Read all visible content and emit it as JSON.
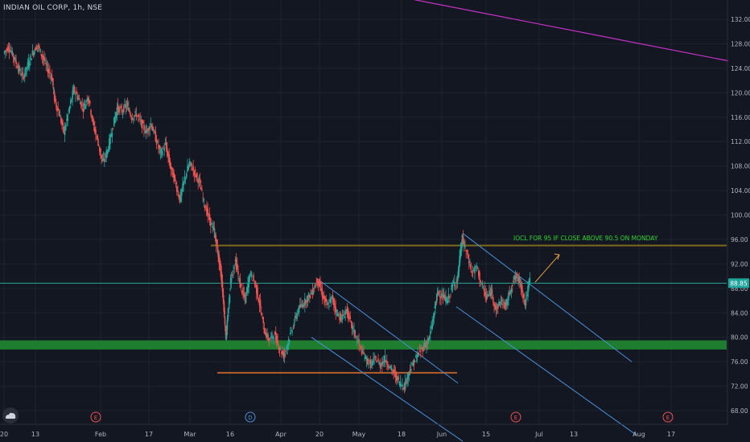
{
  "header": {
    "title": "INDIAN OIL CORP, 1h, NSE"
  },
  "price_badge": {
    "value": "88.85",
    "bg": "#1fa69a"
  },
  "annotation": {
    "text": "IOCL FOR 95 IF CLOSE ABOVE 90.5 ON MONDAY",
    "color": "#2dd62d"
  },
  "events": [
    "E",
    "D",
    "E",
    "E"
  ],
  "icons": {
    "logo": "tradingview-logo-icon"
  },
  "colors": {
    "background": "#131722",
    "grid": "#1f2330",
    "axis_text": "#b2b5be",
    "up": "#26a69a",
    "down": "#ef5350",
    "resistance": "#7a6a1a",
    "support_zone": "#1e7d2e",
    "support_line": "#b25f2a",
    "channel": "#4a90d9",
    "trendline": "#c832c8",
    "annotation_arrow": "#e8a33a"
  },
  "chart_data": {
    "type": "candlestick",
    "title": "INDIAN OIL CORP, 1h, NSE",
    "x_tick_labels": [
      "20",
      "13",
      "Feb",
      "17",
      "Mar",
      "16",
      "Apr",
      "20",
      "May",
      "18",
      "Jun",
      "15",
      "Jul",
      "13",
      "Aug",
      "17"
    ],
    "y_tick_labels": [
      "68.00",
      "72.00",
      "76.00",
      "80.00",
      "84.00",
      "88.00",
      "92.00",
      "96.00",
      "100.00",
      "104.00",
      "108.00",
      "112.00",
      "116.00",
      "120.00",
      "124.00",
      "128.00",
      "132.00"
    ],
    "ylim": [
      66,
      135
    ],
    "last_price": 88.85,
    "price_path": [
      {
        "x": 0.0,
        "y": 126.5
      },
      {
        "x": 0.2,
        "y": 127.5
      },
      {
        "x": 0.4,
        "y": 126.0
      },
      {
        "x": 0.6,
        "y": 124.0
      },
      {
        "x": 0.8,
        "y": 122.5
      },
      {
        "x": 1.0,
        "y": 124.5
      },
      {
        "x": 1.2,
        "y": 126.5
      },
      {
        "x": 1.4,
        "y": 127.8
      },
      {
        "x": 1.6,
        "y": 126.0
      },
      {
        "x": 1.8,
        "y": 124.0
      },
      {
        "x": 2.0,
        "y": 122.5
      },
      {
        "x": 2.1,
        "y": 119.0
      },
      {
        "x": 2.3,
        "y": 116.5
      },
      {
        "x": 2.5,
        "y": 113.5
      },
      {
        "x": 2.7,
        "y": 117.0
      },
      {
        "x": 2.9,
        "y": 120.5
      },
      {
        "x": 3.1,
        "y": 119.0
      },
      {
        "x": 3.3,
        "y": 117.5
      },
      {
        "x": 3.5,
        "y": 119.5
      },
      {
        "x": 3.7,
        "y": 115.0
      },
      {
        "x": 3.9,
        "y": 112.0
      },
      {
        "x": 4.1,
        "y": 108.5
      },
      {
        "x": 4.3,
        "y": 110.5
      },
      {
        "x": 4.5,
        "y": 114.0
      },
      {
        "x": 4.7,
        "y": 117.5
      },
      {
        "x": 4.9,
        "y": 117.0
      },
      {
        "x": 5.1,
        "y": 118.0
      },
      {
        "x": 5.3,
        "y": 116.0
      },
      {
        "x": 5.5,
        "y": 116.5
      },
      {
        "x": 5.7,
        "y": 115.0
      },
      {
        "x": 5.9,
        "y": 113.5
      },
      {
        "x": 6.1,
        "y": 115.0
      },
      {
        "x": 6.3,
        "y": 112.5
      },
      {
        "x": 6.5,
        "y": 110.0
      },
      {
        "x": 6.7,
        "y": 111.5
      },
      {
        "x": 6.9,
        "y": 108.0
      },
      {
        "x": 7.1,
        "y": 105.5
      },
      {
        "x": 7.3,
        "y": 102.5
      },
      {
        "x": 7.5,
        "y": 106.0
      },
      {
        "x": 7.7,
        "y": 108.5
      },
      {
        "x": 7.9,
        "y": 107.0
      },
      {
        "x": 8.1,
        "y": 105.5
      },
      {
        "x": 8.3,
        "y": 102.0
      },
      {
        "x": 8.5,
        "y": 99.5
      },
      {
        "x": 8.7,
        "y": 97.5
      },
      {
        "x": 8.8,
        "y": 95.5
      },
      {
        "x": 8.9,
        "y": 93.0
      },
      {
        "x": 9.0,
        "y": 90.5
      },
      {
        "x": 9.1,
        "y": 86.0
      },
      {
        "x": 9.2,
        "y": 80.0
      },
      {
        "x": 9.3,
        "y": 84.0
      },
      {
        "x": 9.4,
        "y": 89.5
      },
      {
        "x": 9.6,
        "y": 92.5
      },
      {
        "x": 9.8,
        "y": 88.5
      },
      {
        "x": 10.0,
        "y": 86.0
      },
      {
        "x": 10.2,
        "y": 90.5
      },
      {
        "x": 10.4,
        "y": 89.0
      },
      {
        "x": 10.6,
        "y": 85.5
      },
      {
        "x": 10.8,
        "y": 81.0
      },
      {
        "x": 11.0,
        "y": 79.5
      },
      {
        "x": 11.2,
        "y": 80.5
      },
      {
        "x": 11.4,
        "y": 78.5
      },
      {
        "x": 11.6,
        "y": 77.0
      },
      {
        "x": 11.8,
        "y": 79.5
      },
      {
        "x": 12.0,
        "y": 82.0
      },
      {
        "x": 12.2,
        "y": 84.5
      },
      {
        "x": 12.4,
        "y": 85.5
      },
      {
        "x": 12.6,
        "y": 86.5
      },
      {
        "x": 12.8,
        "y": 87.5
      },
      {
        "x": 13.0,
        "y": 89.5
      },
      {
        "x": 13.2,
        "y": 87.0
      },
      {
        "x": 13.4,
        "y": 85.0
      },
      {
        "x": 13.6,
        "y": 86.5
      },
      {
        "x": 13.8,
        "y": 84.0
      },
      {
        "x": 14.0,
        "y": 83.0
      },
      {
        "x": 14.2,
        "y": 84.5
      },
      {
        "x": 14.4,
        "y": 82.0
      },
      {
        "x": 14.6,
        "y": 80.0
      },
      {
        "x": 14.8,
        "y": 78.0
      },
      {
        "x": 15.0,
        "y": 76.5
      },
      {
        "x": 15.2,
        "y": 75.5
      },
      {
        "x": 15.4,
        "y": 76.5
      },
      {
        "x": 15.6,
        "y": 75.5
      },
      {
        "x": 15.8,
        "y": 76.5
      },
      {
        "x": 16.0,
        "y": 75.0
      },
      {
        "x": 16.2,
        "y": 74.0
      },
      {
        "x": 16.4,
        "y": 72.5
      },
      {
        "x": 16.6,
        "y": 72.0
      },
      {
        "x": 16.8,
        "y": 74.5
      },
      {
        "x": 17.0,
        "y": 76.0
      },
      {
        "x": 17.2,
        "y": 77.5
      },
      {
        "x": 17.4,
        "y": 78.5
      },
      {
        "x": 17.6,
        "y": 79.5
      },
      {
        "x": 17.8,
        "y": 83.0
      },
      {
        "x": 17.9,
        "y": 86.0
      },
      {
        "x": 18.0,
        "y": 87.5
      },
      {
        "x": 18.2,
        "y": 86.5
      },
      {
        "x": 18.4,
        "y": 86.0
      },
      {
        "x": 18.6,
        "y": 88.5
      },
      {
        "x": 18.8,
        "y": 89.5
      },
      {
        "x": 18.9,
        "y": 93.5
      },
      {
        "x": 19.0,
        "y": 96.0
      },
      {
        "x": 19.2,
        "y": 93.5
      },
      {
        "x": 19.4,
        "y": 90.5
      },
      {
        "x": 19.6,
        "y": 91.5
      },
      {
        "x": 19.8,
        "y": 88.5
      },
      {
        "x": 20.0,
        "y": 86.5
      },
      {
        "x": 20.2,
        "y": 87.5
      },
      {
        "x": 20.4,
        "y": 84.5
      },
      {
        "x": 20.6,
        "y": 86.0
      },
      {
        "x": 20.8,
        "y": 85.0
      },
      {
        "x": 21.0,
        "y": 88.0
      },
      {
        "x": 21.2,
        "y": 90.0
      },
      {
        "x": 21.4,
        "y": 89.0
      },
      {
        "x": 21.6,
        "y": 85.5
      },
      {
        "x": 21.8,
        "y": 89.5
      }
    ],
    "levels": {
      "resistance": 95.0,
      "support_zone": [
        78.0,
        79.5
      ],
      "support_line": 74.2
    },
    "channels": [
      {
        "a": {
          "x": 13.0,
          "y": 89.5
        },
        "b": {
          "x": 18.8,
          "y": 72.5
        },
        "offset": -9.5
      },
      {
        "a": {
          "x": 19.0,
          "y": 97.0
        },
        "b": {
          "x": 26.0,
          "y": 76.0
        },
        "offset": -12.0
      }
    ],
    "trendline": {
      "a": {
        "x": 17.0,
        "y": 135.2
      },
      "b": {
        "x": 30.0,
        "y": 125.2
      }
    },
    "annotation_arrow": {
      "from": {
        "x": 22.0,
        "y": 89.0
      },
      "to": {
        "x": 23.0,
        "y": 93.5
      }
    },
    "event_markers_x": [
      3.8,
      10.2,
      21.2,
      27.5
    ]
  }
}
